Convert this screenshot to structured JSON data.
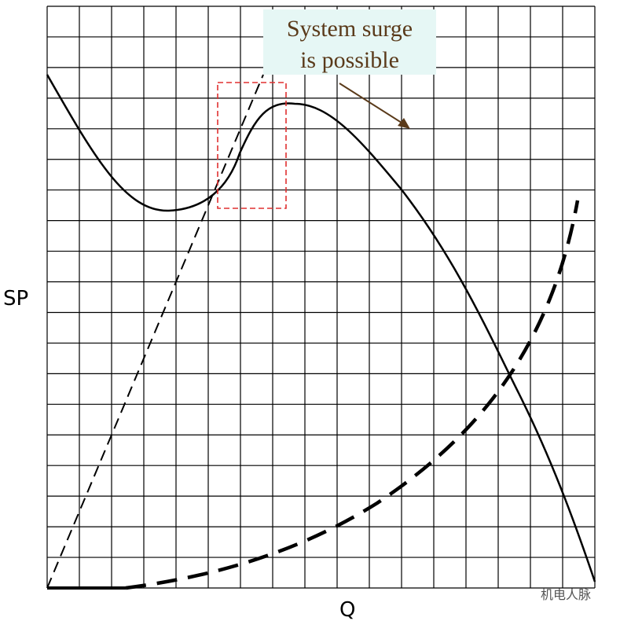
{
  "annotation": {
    "lines": [
      "System surge",
      "is possible"
    ]
  },
  "axes": {
    "y_label": "SP",
    "x_label": "Q"
  },
  "watermark": "机电人脉"
}
